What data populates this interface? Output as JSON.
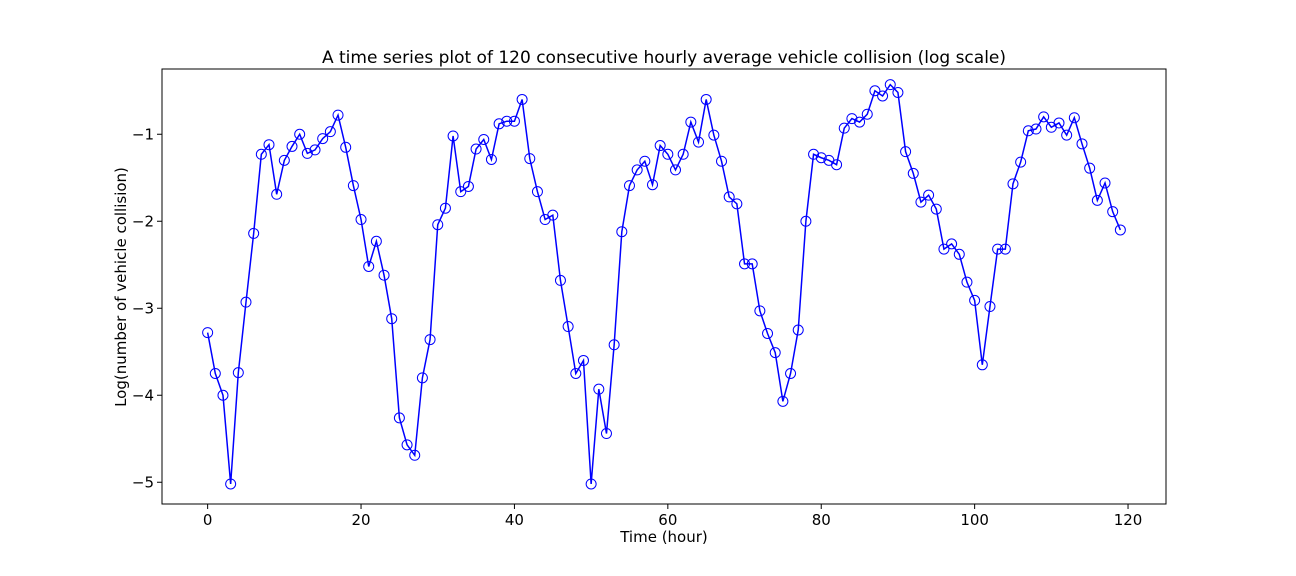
{
  "chart_data": {
    "type": "line",
    "title": "A time series plot of 120 consecutive hourly average vehicle collision (log scale)",
    "xlabel": "Time (hour)",
    "ylabel": "Log(number of vehicle collision)",
    "xlim": [
      -5.95,
      124.95
    ],
    "ylim": [
      -5.25,
      -0.25
    ],
    "xticks": [
      0,
      20,
      40,
      60,
      80,
      100,
      120
    ],
    "xtick_labels": [
      "0",
      "20",
      "40",
      "60",
      "80",
      "100",
      "120"
    ],
    "yticks": [
      -5,
      -4,
      -3,
      -2,
      -1
    ],
    "ytick_labels": [
      "−5",
      "−4",
      "−3",
      "−2",
      "−1"
    ],
    "grid": false,
    "series": [
      {
        "color": "#0000ff",
        "marker": "circle-open",
        "x": [
          0,
          1,
          2,
          3,
          4,
          5,
          6,
          7,
          8,
          9,
          10,
          11,
          12,
          13,
          14,
          15,
          16,
          17,
          18,
          19,
          20,
          21,
          22,
          23,
          24,
          25,
          26,
          27,
          28,
          29,
          30,
          31,
          32,
          33,
          34,
          35,
          36,
          37,
          38,
          39,
          40,
          41,
          42,
          43,
          44,
          45,
          46,
          47,
          48,
          49,
          50,
          51,
          52,
          53,
          54,
          55,
          56,
          57,
          58,
          59,
          60,
          61,
          62,
          63,
          64,
          65,
          66,
          67,
          68,
          69,
          70,
          71,
          72,
          73,
          74,
          75,
          76,
          77,
          78,
          79,
          80,
          81,
          82,
          83,
          84,
          85,
          86,
          87,
          88,
          89,
          90,
          91,
          92,
          93,
          94,
          95,
          96,
          97,
          98,
          99,
          100,
          101,
          102,
          103,
          104,
          105,
          106,
          107,
          108,
          109,
          110,
          111,
          112,
          113,
          114,
          115,
          116,
          117,
          118,
          119
        ],
        "y": [
          -3.28,
          -3.75,
          -4.0,
          -5.02,
          -3.74,
          -2.93,
          -2.14,
          -1.23,
          -1.12,
          -1.69,
          -1.3,
          -1.14,
          -1.0,
          -1.22,
          -1.18,
          -1.05,
          -0.97,
          -0.78,
          -1.15,
          -1.59,
          -1.98,
          -2.52,
          -2.23,
          -2.62,
          -3.12,
          -4.26,
          -4.57,
          -4.69,
          -3.8,
          -3.36,
          -2.04,
          -1.85,
          -1.02,
          -1.66,
          -1.6,
          -1.17,
          -1.06,
          -1.29,
          -0.88,
          -0.85,
          -0.85,
          -0.6,
          -1.28,
          -1.66,
          -1.98,
          -1.93,
          -2.68,
          -3.21,
          -3.75,
          -3.6,
          -5.02,
          -3.93,
          -4.44,
          -3.42,
          -2.12,
          -1.59,
          -1.41,
          -1.31,
          -1.58,
          -1.13,
          -1.23,
          -1.41,
          -1.23,
          -0.86,
          -1.09,
          -0.6,
          -1.01,
          -1.31,
          -1.72,
          -1.8,
          -2.49,
          -2.49,
          -3.03,
          -3.29,
          -3.51,
          -4.07,
          -3.75,
          -3.25,
          -2.0,
          -1.23,
          -1.27,
          -1.3,
          -1.35,
          -0.93,
          -0.82,
          -0.86,
          -0.77,
          -0.5,
          -0.56,
          -0.43,
          -0.52,
          -1.2,
          -1.45,
          -1.78,
          -1.7,
          -1.86,
          -2.32,
          -2.26,
          -2.38,
          -2.7,
          -2.91,
          -3.65,
          -2.98,
          -2.32,
          -2.32,
          -1.57,
          -1.32,
          -0.96,
          -0.94,
          -0.8,
          -0.92,
          -0.87,
          -1.01,
          -0.81,
          -1.11,
          -1.39,
          -1.76,
          -1.56,
          -1.89,
          -2.1
        ]
      }
    ]
  }
}
